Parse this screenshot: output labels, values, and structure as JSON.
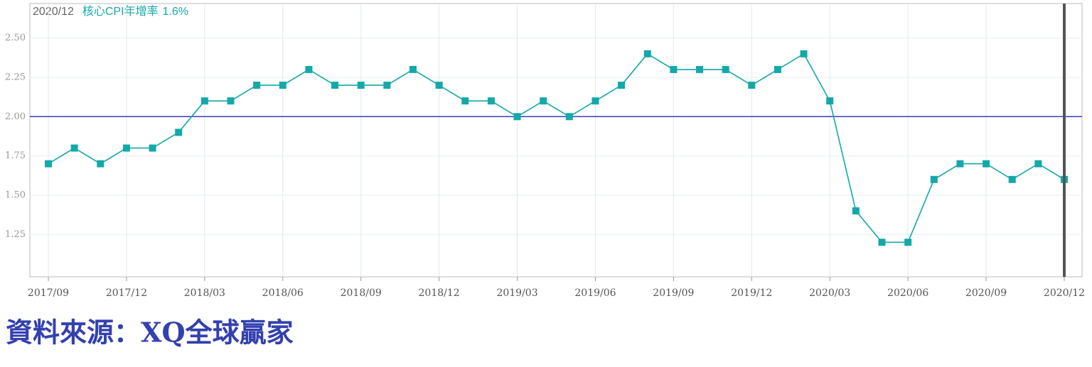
{
  "chart_data": {
    "type": "line",
    "categories": [
      "2017/09",
      null,
      null,
      "2017/12",
      null,
      null,
      "2018/03",
      null,
      null,
      "2018/06",
      null,
      null,
      "2018/09",
      null,
      null,
      "2018/12",
      null,
      null,
      "2019/03",
      null,
      null,
      "2019/06",
      null,
      null,
      "2019/09",
      null,
      null,
      "2019/12",
      null,
      null,
      "2020/03",
      null,
      null,
      "2020/06",
      null,
      null,
      "2020/09",
      null,
      null,
      "2020/12"
    ],
    "series": [
      {
        "name": "核心CPI年增率",
        "color": "#14a8a8",
        "values": [
          1.7,
          1.8,
          1.7,
          1.8,
          1.8,
          1.9,
          2.1,
          2.1,
          2.2,
          2.2,
          2.3,
          2.2,
          2.2,
          2.2,
          2.3,
          2.2,
          2.1,
          2.1,
          2.0,
          2.1,
          2.0,
          2.1,
          2.2,
          2.4,
          2.3,
          2.3,
          2.3,
          2.2,
          2.3,
          2.4,
          2.1,
          1.4,
          1.2,
          1.2,
          1.6,
          1.7,
          1.7,
          1.6,
          1.7,
          1.6
        ],
        "value_labels": {
          "39": "1.6%"
        }
      }
    ],
    "ylim": [
      0.98,
      2.72
    ],
    "yticks": [
      {
        "value": 1.25,
        "label": "1.25"
      },
      {
        "value": 1.5,
        "label": "1.50"
      },
      {
        "value": 1.75,
        "label": "1.75"
      },
      {
        "value": 2.0,
        "label": "2.00"
      },
      {
        "value": 2.25,
        "label": "2.25"
      },
      {
        "value": 2.5,
        "label": "2.50"
      }
    ],
    "reference_line": {
      "value": 2.0,
      "color": "#3b3bb5"
    },
    "grid": true,
    "source": "資料來源：XQ全球贏家"
  }
}
